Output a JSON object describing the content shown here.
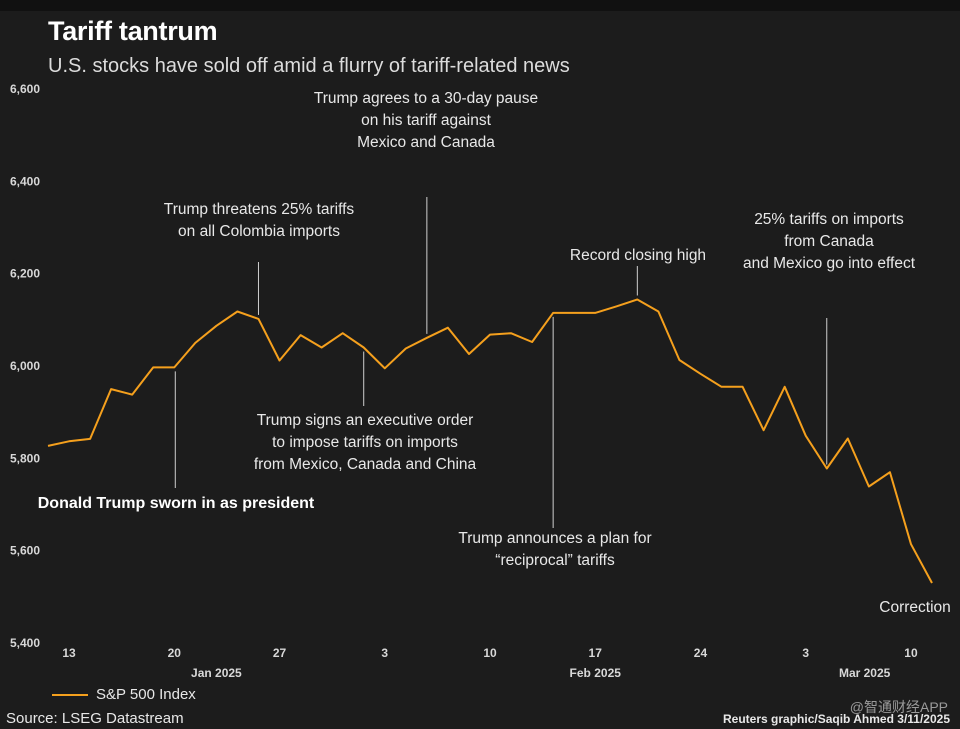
{
  "header": {
    "title": "Tariff tantrum",
    "subtitle": "U.S. stocks have sold off amid a flurry of tariff-related news"
  },
  "legend": {
    "label": "S&P 500 Index"
  },
  "footer": {
    "source": "Source: LSEG Datastream",
    "credit": "Reuters graphic/Saqib Ahmed 3/11/2025",
    "watermark": "@智通财经APP"
  },
  "colors": {
    "line": "#f5a01d",
    "background": "#1c1c1c",
    "leader": "#cfcfcf"
  },
  "chart_data": {
    "type": "line",
    "title": "Tariff tantrum",
    "subtitle": "U.S. stocks have sold off amid a flurry of tariff-related news",
    "series": [
      {
        "name": "S&P 500 Index",
        "x": [
          0,
          1,
          2,
          3,
          4,
          5,
          6,
          7,
          8,
          9,
          10,
          11,
          12,
          13,
          14,
          15,
          16,
          17,
          18,
          19,
          20,
          21,
          22,
          23,
          24,
          25,
          26,
          27,
          28,
          29,
          30,
          31,
          32,
          33,
          34,
          35,
          36,
          37,
          38,
          39,
          40,
          41,
          42
        ],
        "values": [
          5827,
          5837,
          5842,
          5950,
          5938,
          5997,
          5997,
          6050,
          6087,
          6118,
          6102,
          6012,
          6067,
          6040,
          6071,
          6040,
          5995,
          6038,
          6061,
          6083,
          6026,
          6068,
          6071,
          6052,
          6115,
          6115,
          6115,
          6129,
          6144,
          6118,
          6013,
          5983,
          5955,
          5955,
          5861,
          5955,
          5849,
          5778,
          5843,
          5739,
          5770,
          5614,
          5530
        ],
        "labels": [
          "Jan 10",
          "Jan 13",
          "Jan 14",
          "Jan 15",
          "Jan 16",
          "Jan 17",
          "Jan 21",
          "Jan 22",
          "Jan 23",
          "Jan 24",
          "Jan 27",
          "Jan 28",
          "Jan 29",
          "Jan 30",
          "Jan 31",
          "Feb 3",
          "Feb 4",
          "Feb 5",
          "Feb 6",
          "Feb 7",
          "Feb 10",
          "Feb 11",
          "Feb 12",
          "Feb 13",
          "Feb 14",
          "Feb 18",
          "Feb 19",
          "Feb 20",
          "Feb 21",
          "Feb 24",
          "Feb 25",
          "Feb 26",
          "Feb 27",
          "Feb 28",
          "Mar 3",
          "Mar 4",
          "Mar 5",
          "Mar 6",
          "Mar 7",
          "Mar 10",
          "Mar 11",
          "Mar 12",
          "Mar 13"
        ]
      }
    ],
    "ylim": [
      5400,
      6600
    ],
    "yticks": [
      {
        "value": 6600,
        "label": "6,600"
      },
      {
        "value": 6400,
        "label": "6,400"
      },
      {
        "value": 6200,
        "label": "6,200"
      },
      {
        "value": 6000,
        "label": "6,000"
      },
      {
        "value": 5800,
        "label": "5,800"
      },
      {
        "value": 5600,
        "label": "5,600"
      },
      {
        "value": 5400,
        "label": "5,400"
      }
    ],
    "xticks": [
      {
        "x": 1,
        "label": "13"
      },
      {
        "x": 6,
        "label": "20"
      },
      {
        "x": 11,
        "label": "27"
      },
      {
        "x": 16,
        "label": "3"
      },
      {
        "x": 21,
        "label": "10"
      },
      {
        "x": 26,
        "label": "17"
      },
      {
        "x": 31,
        "label": "24"
      },
      {
        "x": 36,
        "label": "3"
      },
      {
        "x": 41,
        "label": "10"
      }
    ],
    "month_labels": [
      {
        "x": 8,
        "label": "Jan 2025"
      },
      {
        "x": 26,
        "label": "Feb 2025"
      },
      {
        "x": 38.8,
        "label": "Mar 2025"
      }
    ],
    "grid": false,
    "legend_position": "bottom-left",
    "annotations": [
      {
        "id": "sworn",
        "x": 6,
        "value": 5997,
        "side": "below",
        "bold": true,
        "lines": [
          "Donald Trump sworn in as president"
        ]
      },
      {
        "id": "colombia",
        "x": 10,
        "value": 6102,
        "side": "above",
        "bold": false,
        "lines": [
          "Trump threatens 25% tariffs",
          "on all Colombia imports"
        ]
      },
      {
        "id": "exec-order",
        "x": 15,
        "value": 6040,
        "side": "below",
        "bold": false,
        "lines": [
          "Trump signs an executive order",
          "to impose tariffs on imports",
          "from Mexico, Canada and China"
        ]
      },
      {
        "id": "pause",
        "x": 18,
        "value": 6061,
        "side": "above",
        "bold": false,
        "lines": [
          "Trump agrees to a 30-day pause",
          "on his tariff against",
          "Mexico and Canada"
        ]
      },
      {
        "id": "reciprocal",
        "x": 24,
        "value": 6115,
        "side": "below",
        "bold": false,
        "lines": [
          "Trump announces a plan for",
          "“reciprocal” tariffs"
        ]
      },
      {
        "id": "record",
        "x": 28,
        "value": 6144,
        "side": "above",
        "bold": false,
        "lines": [
          "Record closing high"
        ]
      },
      {
        "id": "into-effect",
        "x": 37,
        "value": 5778,
        "side": "above",
        "bold": false,
        "lines": [
          "25% tariffs on imports",
          "from Canada",
          "and Mexico go into effect"
        ]
      },
      {
        "id": "correction",
        "x": 42,
        "value": 5530,
        "side": "below",
        "bold": false,
        "lines": [
          "Correction"
        ]
      }
    ]
  }
}
